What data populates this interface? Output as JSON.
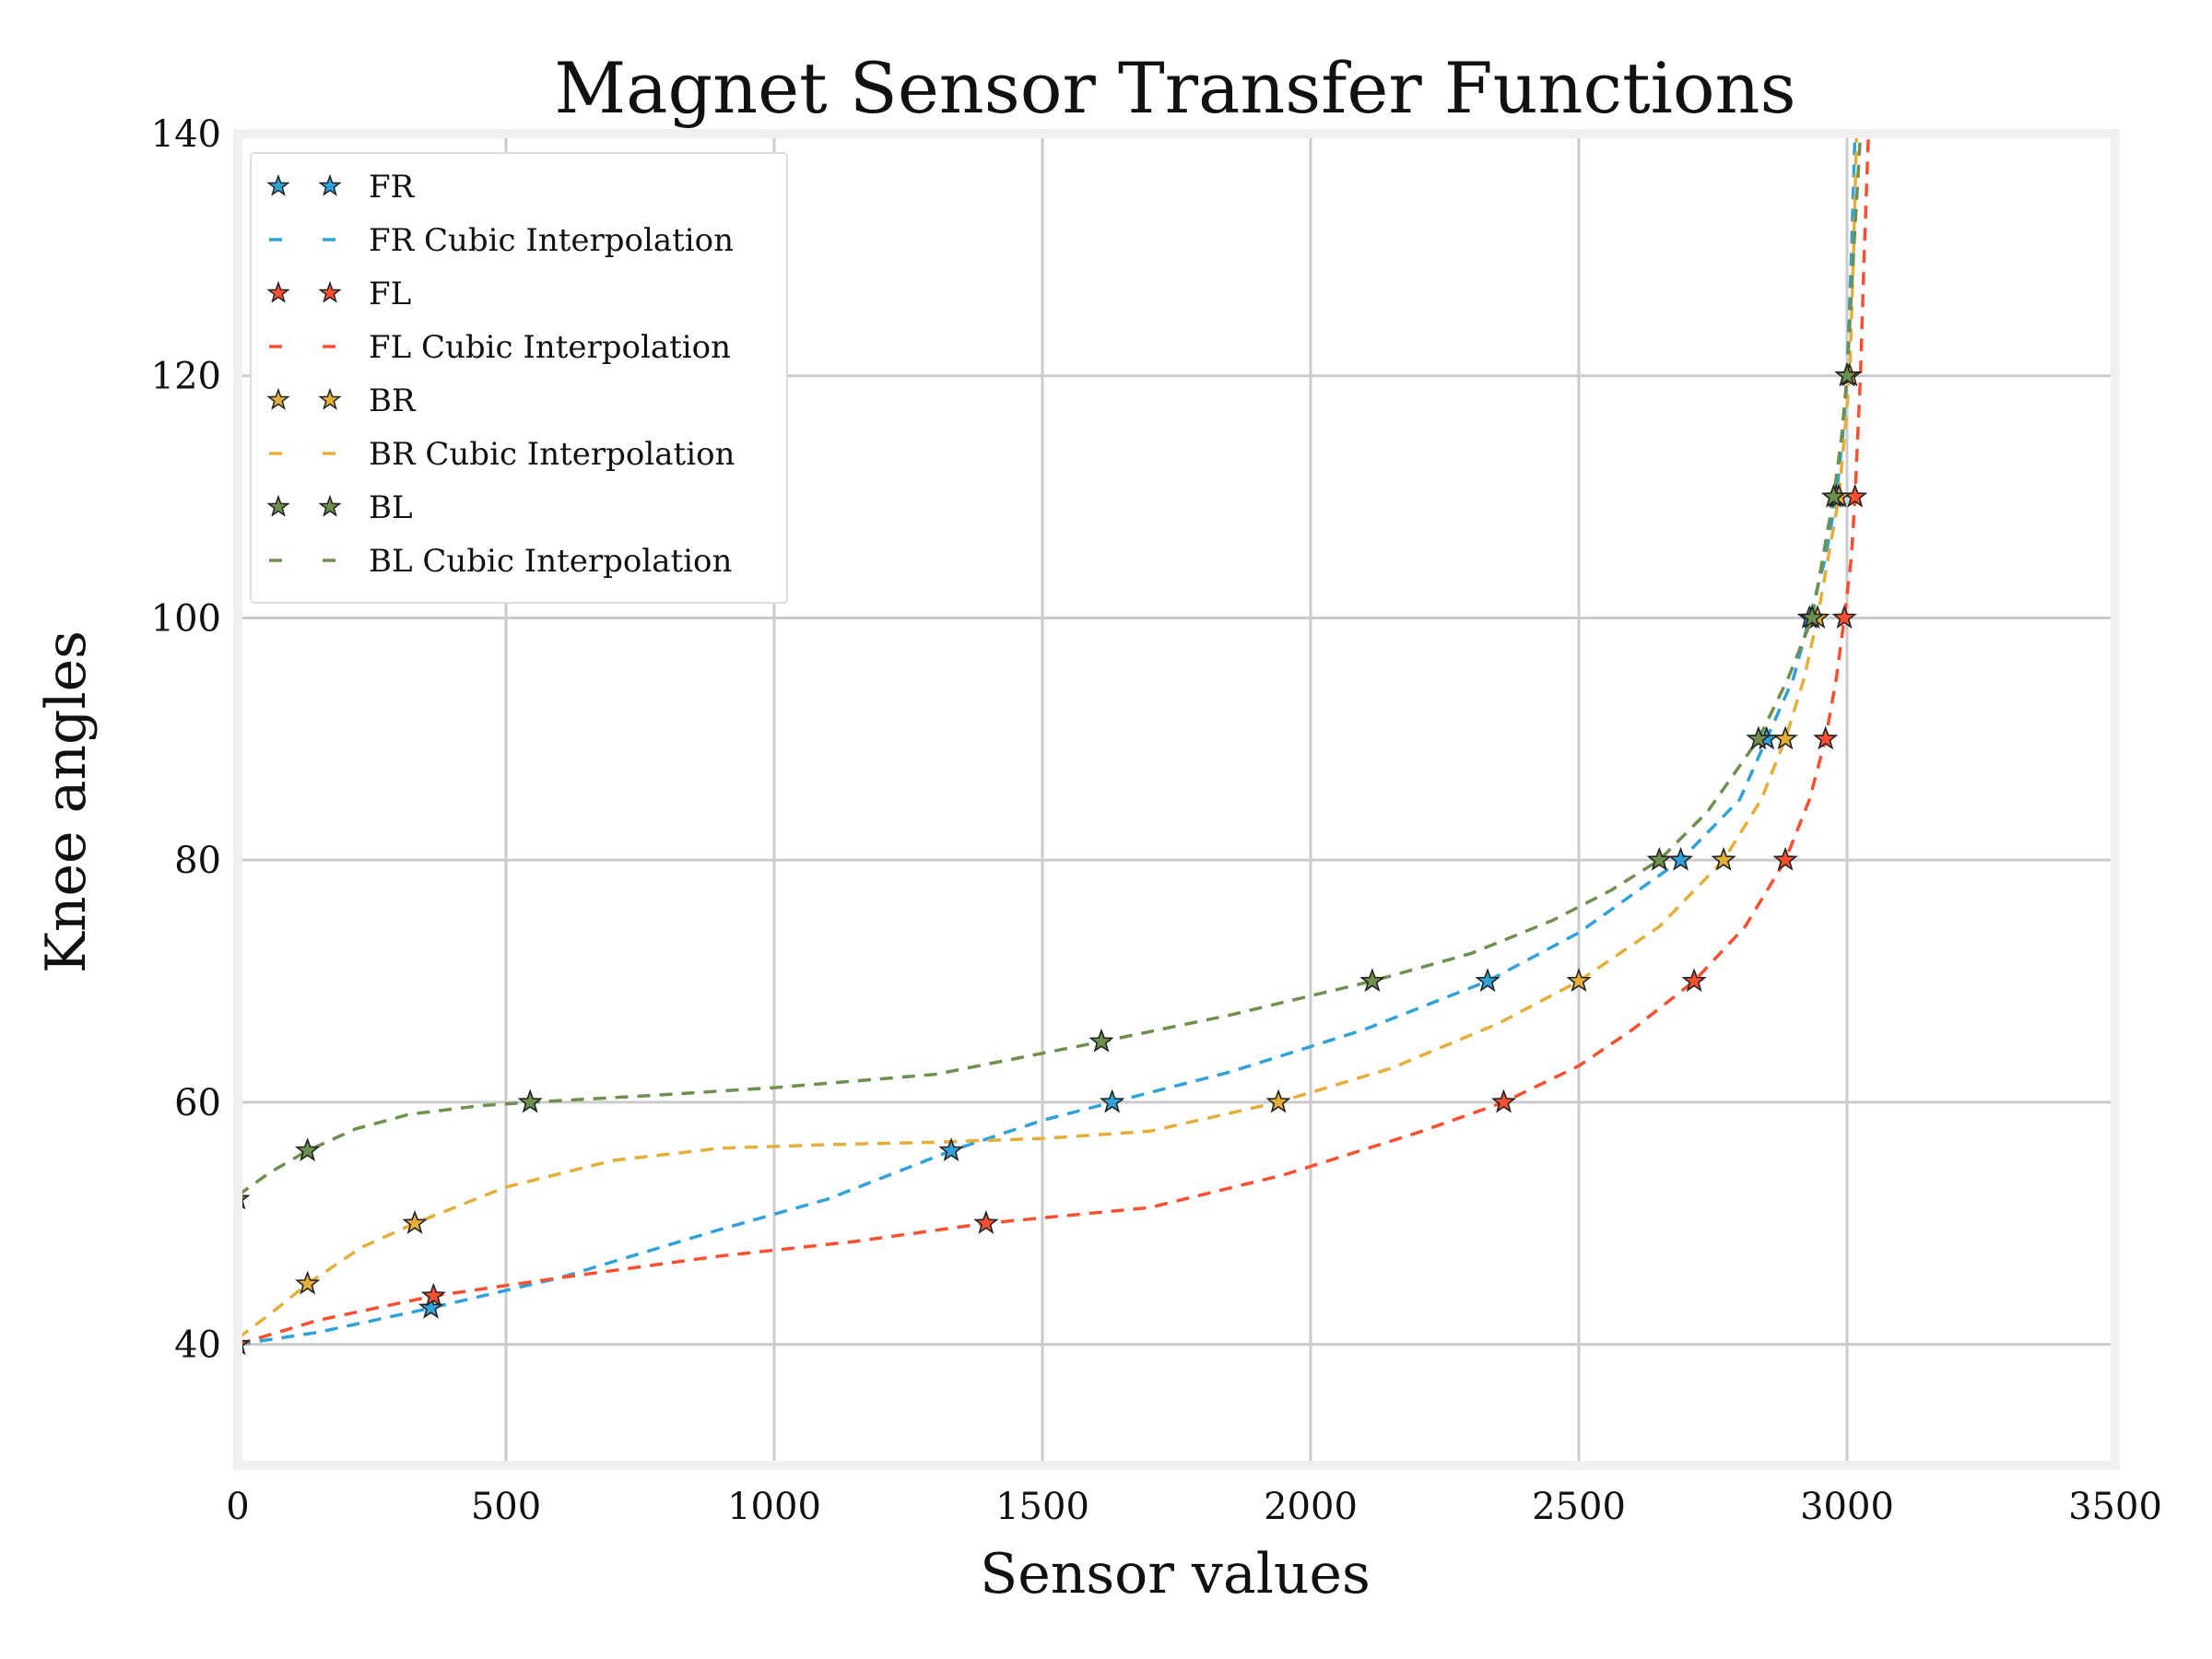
{
  "chart_data": {
    "type": "line",
    "title": "Magnet Sensor Transfer Functions",
    "xlabel": "Sensor values",
    "ylabel": "Knee angles",
    "xlim": [
      0,
      3500
    ],
    "ylim": [
      30,
      140
    ],
    "xticks": [
      0,
      500,
      1000,
      1500,
      2000,
      2500,
      3000,
      3500
    ],
    "yticks": [
      40,
      60,
      80,
      100,
      120,
      140
    ],
    "grid": true,
    "legend_position": "top-left",
    "series": [
      {
        "name": "FR",
        "interp_name": "FR Cubic Interpolation",
        "color": "#30a2da",
        "points": [
          [
            0,
            40
          ],
          [
            360,
            43
          ],
          [
            1330,
            56
          ],
          [
            1630,
            60
          ],
          [
            2330,
            70
          ],
          [
            2690,
            80
          ],
          [
            2850,
            90
          ],
          [
            2930,
            100
          ],
          [
            2980,
            110
          ],
          [
            3000,
            120
          ]
        ],
        "curve": [
          [
            0,
            40
          ],
          [
            150,
            41
          ],
          [
            360,
            43
          ],
          [
            600,
            45.5
          ],
          [
            900,
            49.5
          ],
          [
            1100,
            52
          ],
          [
            1330,
            56
          ],
          [
            1500,
            58.5
          ],
          [
            1630,
            60
          ],
          [
            1850,
            62.5
          ],
          [
            2100,
            66
          ],
          [
            2330,
            70
          ],
          [
            2500,
            74
          ],
          [
            2690,
            80
          ],
          [
            2800,
            85
          ],
          [
            2850,
            90
          ],
          [
            2900,
            95
          ],
          [
            2930,
            100
          ],
          [
            2960,
            105
          ],
          [
            2980,
            110
          ],
          [
            2992,
            115
          ],
          [
            3000,
            120
          ],
          [
            3008,
            130
          ],
          [
            3015,
            140
          ]
        ]
      },
      {
        "name": "FL",
        "interp_name": "FL Cubic Interpolation",
        "color": "#fc4f30",
        "points": [
          [
            0,
            40
          ],
          [
            365,
            44
          ],
          [
            1395,
            50
          ],
          [
            2360,
            60
          ],
          [
            2715,
            70
          ],
          [
            2885,
            80
          ],
          [
            2960,
            90
          ],
          [
            2995,
            100
          ],
          [
            3015,
            110
          ]
        ],
        "curve": [
          [
            0,
            40
          ],
          [
            150,
            42
          ],
          [
            365,
            44
          ],
          [
            600,
            45.5
          ],
          [
            900,
            47.3
          ],
          [
            1150,
            48.5
          ],
          [
            1395,
            50
          ],
          [
            1700,
            51.3
          ],
          [
            1950,
            54
          ],
          [
            2200,
            57.5
          ],
          [
            2360,
            60
          ],
          [
            2500,
            63
          ],
          [
            2600,
            66
          ],
          [
            2715,
            70
          ],
          [
            2810,
            74.5
          ],
          [
            2885,
            80
          ],
          [
            2930,
            85
          ],
          [
            2960,
            90
          ],
          [
            2980,
            95
          ],
          [
            2995,
            100
          ],
          [
            3008,
            105
          ],
          [
            3015,
            110
          ],
          [
            3025,
            120
          ],
          [
            3032,
            130
          ],
          [
            3040,
            140
          ]
        ]
      },
      {
        "name": "BR",
        "interp_name": "BR Cubic Interpolation",
        "color": "#e5ae38",
        "points": [
          [
            130,
            45
          ],
          [
            330,
            50
          ],
          [
            1940,
            60
          ],
          [
            2500,
            70
          ],
          [
            2770,
            80
          ],
          [
            2885,
            90
          ],
          [
            2945,
            100
          ],
          [
            2985,
            110
          ],
          [
            3005,
            120
          ]
        ],
        "curve": [
          [
            0,
            40.5
          ],
          [
            60,
            42.5
          ],
          [
            130,
            45
          ],
          [
            230,
            48
          ],
          [
            330,
            50
          ],
          [
            500,
            53
          ],
          [
            700,
            55.2
          ],
          [
            900,
            56.2
          ],
          [
            1100,
            56.5
          ],
          [
            1300,
            56.7
          ],
          [
            1500,
            57
          ],
          [
            1700,
            57.6
          ],
          [
            1940,
            60
          ],
          [
            2150,
            62.8
          ],
          [
            2350,
            66.5
          ],
          [
            2500,
            70
          ],
          [
            2650,
            74.5
          ],
          [
            2770,
            80
          ],
          [
            2840,
            85
          ],
          [
            2885,
            90
          ],
          [
            2920,
            95
          ],
          [
            2945,
            100
          ],
          [
            2965,
            105
          ],
          [
            2985,
            110
          ],
          [
            2995,
            115
          ],
          [
            3005,
            120
          ],
          [
            3012,
            130
          ],
          [
            3018,
            140
          ]
        ]
      },
      {
        "name": "BL",
        "interp_name": "BL Cubic Interpolation",
        "color": "#6d904f",
        "points": [
          [
            0,
            52
          ],
          [
            130,
            56
          ],
          [
            545,
            60
          ],
          [
            1610,
            65
          ],
          [
            2115,
            70
          ],
          [
            2650,
            80
          ],
          [
            2835,
            90
          ],
          [
            2935,
            100
          ],
          [
            2975,
            110
          ],
          [
            3000,
            120
          ]
        ],
        "curve": [
          [
            0,
            52.3
          ],
          [
            60,
            54.2
          ],
          [
            130,
            56
          ],
          [
            220,
            57.8
          ],
          [
            320,
            59
          ],
          [
            450,
            59.7
          ],
          [
            545,
            60
          ],
          [
            750,
            60.5
          ],
          [
            1000,
            61.2
          ],
          [
            1300,
            62.3
          ],
          [
            1610,
            65
          ],
          [
            1850,
            67.2
          ],
          [
            2115,
            70
          ],
          [
            2300,
            72.3
          ],
          [
            2450,
            75
          ],
          [
            2560,
            77.5
          ],
          [
            2650,
            80
          ],
          [
            2740,
            84
          ],
          [
            2835,
            90
          ],
          [
            2890,
            95
          ],
          [
            2935,
            100
          ],
          [
            2955,
            105
          ],
          [
            2975,
            110
          ],
          [
            2990,
            115
          ],
          [
            3000,
            120
          ],
          [
            3012,
            130
          ],
          [
            3025,
            140
          ]
        ]
      }
    ]
  }
}
